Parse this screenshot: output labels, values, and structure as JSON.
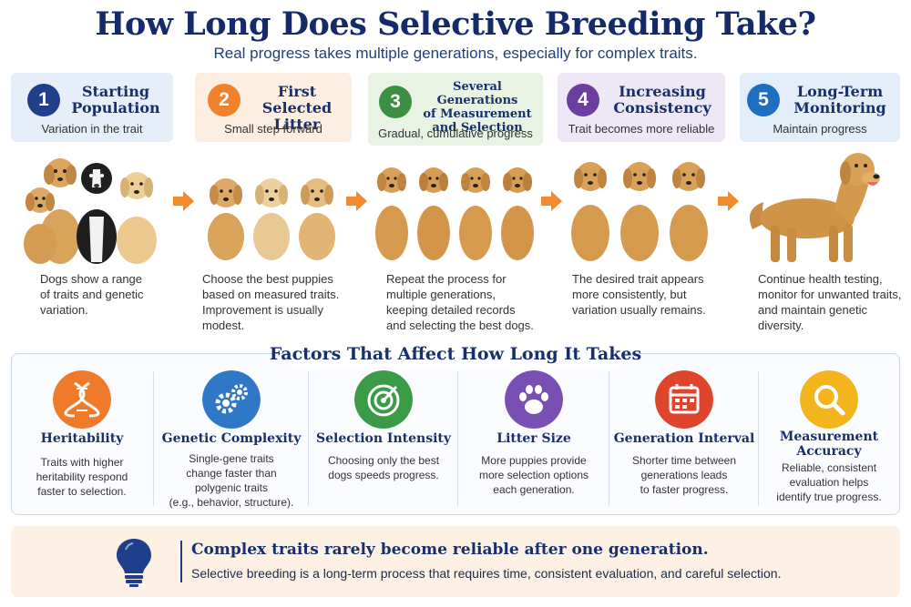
{
  "header": {
    "title": "How Long Does Selective Breeding Take?",
    "subtitle": "Real progress takes multiple generations, especially for complex traits."
  },
  "steps": [
    {
      "number": "1",
      "title_lines": [
        "Starting",
        "Population"
      ],
      "subtitle": "Variation in the trait",
      "description_lines": [
        "Dogs show a range",
        "of traits and genetic",
        "variation."
      ],
      "color": "#1f3f8a",
      "bg": "#e6eef9"
    },
    {
      "number": "2",
      "title_lines": [
        "First",
        "Selected Litter"
      ],
      "subtitle": "Small step forward",
      "description_lines": [
        "Choose the best puppies",
        "based on measured traits.",
        "Improvement is usually",
        "modest."
      ],
      "color": "#f0822b",
      "bg": "#fdeee2"
    },
    {
      "number": "3",
      "title_lines": [
        "Several Generations",
        "of Measurement",
        "and Selection"
      ],
      "subtitle": "Gradual, cumulative progress",
      "description_lines": [
        "Repeat the process for",
        "multiple generations,",
        "keeping detailed records",
        "and selecting the best dogs."
      ],
      "color": "#3d8f43",
      "bg": "#e8f3e4"
    },
    {
      "number": "4",
      "title_lines": [
        "Increasing",
        "Consistency"
      ],
      "subtitle": "Trait becomes more reliable",
      "description_lines": [
        "The desired trait appears",
        "more consistently, but",
        "variation usually remains."
      ],
      "color": "#6b3fa0",
      "bg": "#eee7f6"
    },
    {
      "number": "5",
      "title_lines": [
        "Long-Term",
        "Monitoring"
      ],
      "subtitle": "Maintain progress",
      "description_lines": [
        "Continue health testing,",
        "monitor for unwanted traits,",
        "and maintain genetic",
        "diversity."
      ],
      "color": "#1f6fc0",
      "bg": "#e3eef9"
    }
  ],
  "factors_section": {
    "title": "Factors That Affect How Long It Takes",
    "factors": [
      {
        "name_lines": [
          "Heritability"
        ],
        "icon": "dna-icon",
        "color": "#ee7a2a",
        "description_lines": [
          "Traits with higher",
          "heritability respond",
          "faster to selection."
        ]
      },
      {
        "name_lines": [
          "Genetic Complexity"
        ],
        "icon": "gears-icon",
        "color": "#2f78c8",
        "description_lines": [
          "Single-gene traits",
          "change faster than",
          "polygenic traits",
          "(e.g., behavior, structure)."
        ]
      },
      {
        "name_lines": [
          "Selection Intensity"
        ],
        "icon": "target-icon",
        "color": "#3a9a46",
        "description_lines": [
          "Choosing only the best",
          "dogs speeds progress."
        ]
      },
      {
        "name_lines": [
          "Litter Size"
        ],
        "icon": "paw-icon",
        "color": "#7a4fb3",
        "description_lines": [
          "More puppies provide",
          "more selection options",
          "each generation."
        ]
      },
      {
        "name_lines": [
          "Generation Interval"
        ],
        "icon": "calendar-icon",
        "color": "#e0442c",
        "description_lines": [
          "Shorter time between",
          "generations leads",
          "to faster progress."
        ]
      },
      {
        "name_lines": [
          "Measurement",
          "Accuracy"
        ],
        "icon": "magnifier-icon",
        "color": "#f2b51c",
        "description_lines": [
          "Reliable, consistent",
          "evaluation helps",
          "identify true progress."
        ]
      }
    ]
  },
  "banner": {
    "icon": "lightbulb-icon",
    "headline": "Complex traits rarely become reliable after one generation.",
    "text": "Selective breeding is a long-term process that requires time, consistent evaluation, and careful selection."
  },
  "colors": {
    "navy": "#17306b",
    "arrow": "#f28a2e",
    "golden": "#d39a4e"
  }
}
